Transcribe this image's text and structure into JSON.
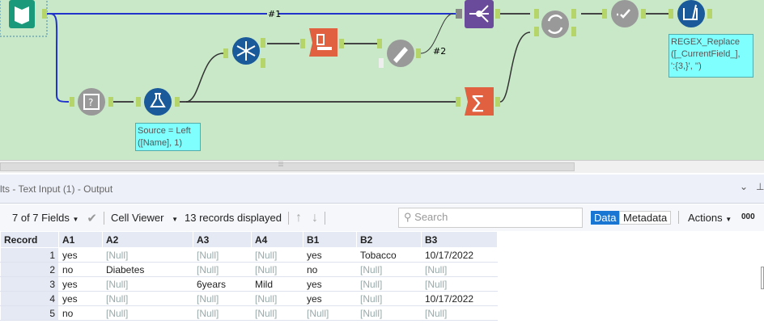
{
  "canvas": {
    "connection_labels": [
      "#1",
      "#2"
    ],
    "comments": {
      "formula": [
        "Source = Left",
        "([Name], 1)"
      ],
      "regex": [
        "REGEX_Replace",
        "([_CurrentField_],",
        "':{3,}', '')"
      ]
    },
    "tools": [
      "text-input",
      "select-records",
      "formula",
      "unique",
      "sort",
      "dynamic-rename",
      "join",
      "summarize",
      "join-multiple",
      "test",
      "cleanse"
    ]
  },
  "results": {
    "title": "lts - Text Input (1) - Output",
    "fields": "7 of 7 Fields",
    "viewer": "Cell Viewer",
    "records_displayed": "13 records displayed",
    "search_placeholder": "Search",
    "data_tab": "Data",
    "metadata_tab": "Metadata",
    "actions": "Actions",
    "extra": "000",
    "columns": [
      "Record",
      "A1",
      "A2",
      "A3",
      "A4",
      "B1",
      "B2",
      "B3"
    ],
    "rows": [
      [
        "1",
        "yes",
        "[Null]",
        "[Null]",
        "[Null]",
        "yes",
        "Tobacco",
        "10/17/2022"
      ],
      [
        "2",
        "no",
        "Diabetes",
        "[Null]",
        "[Null]",
        "no",
        "[Null]",
        "[Null]"
      ],
      [
        "3",
        "yes",
        "[Null]",
        "6years",
        "Mild",
        "yes",
        "[Null]",
        "[Null]"
      ],
      [
        "4",
        "yes",
        "[Null]",
        "[Null]",
        "[Null]",
        "yes",
        "[Null]",
        "10/17/2022"
      ],
      [
        "5",
        "no",
        "[Null]",
        "[Null]",
        "[Null]",
        "[Null]",
        "[Null]",
        "[Null]"
      ]
    ]
  },
  "colors": {
    "canvas": "#c8e8c8",
    "accent": "#1976d2",
    "comment": "#80ffff"
  }
}
